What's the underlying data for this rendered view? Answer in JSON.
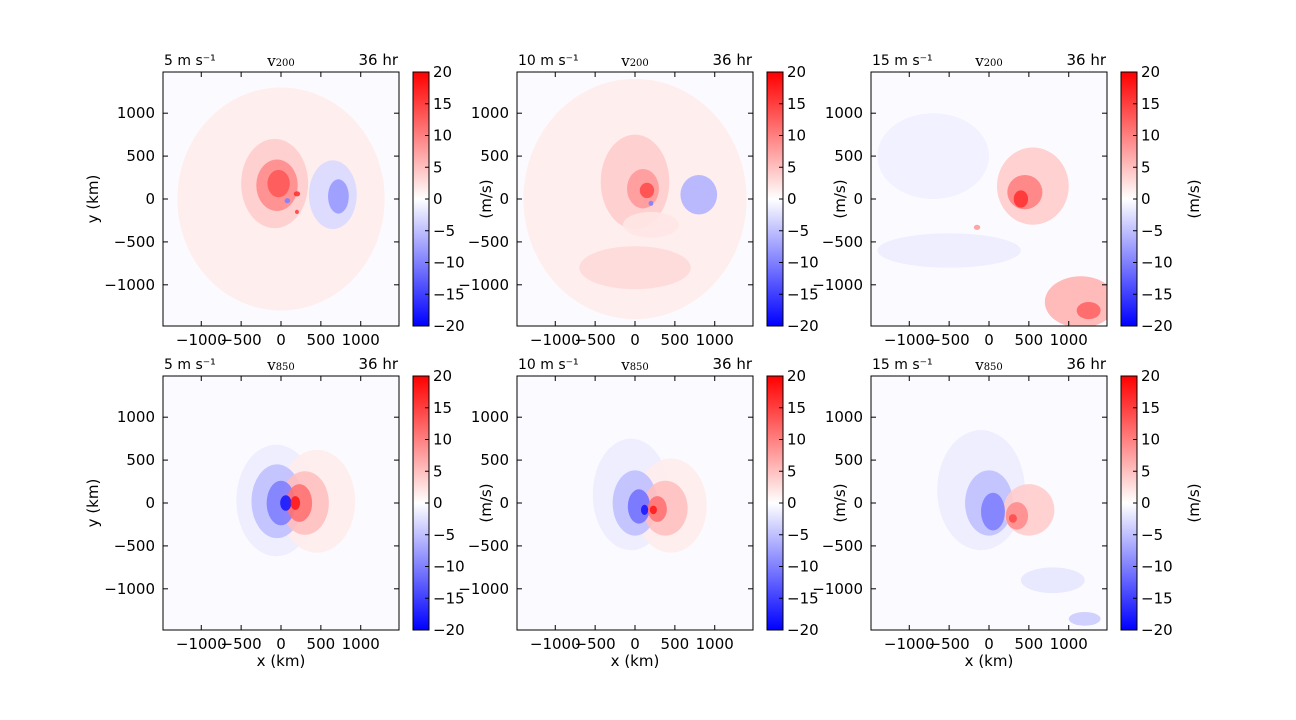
{
  "figure": {
    "xlabel": "x (km)",
    "ylabel": "y (km)",
    "colorbar_label": "(m/s)",
    "time_label": "36 hr"
  },
  "colorscale": {
    "min": -20,
    "max": 20,
    "negative": "#0000ff",
    "zero": "#ffffff",
    "positive": "#ff0000"
  },
  "chart_data": [
    {
      "type": "heatmap",
      "shear_label": "5 m s⁻¹",
      "level_var": "v",
      "level_sub": "200",
      "time": "36 hr",
      "xticks": [
        "−1000",
        "−500",
        "0",
        "500",
        "1000"
      ],
      "yticks": [
        "1000",
        "500",
        "0",
        "−500",
        "−1000"
      ],
      "cbar_ticks": [
        "20",
        "15",
        "10",
        "5",
        "0",
        "−5",
        "−10",
        "−15",
        "−20"
      ],
      "xlim": [
        -1480,
        1480
      ],
      "ylim": [
        -1480,
        1480
      ],
      "blobs": [
        {
          "x": -80,
          "y": 180,
          "rx": 420,
          "ry": 520,
          "v": 4
        },
        {
          "x": -50,
          "y": 160,
          "rx": 260,
          "ry": 300,
          "v": 9
        },
        {
          "x": -30,
          "y": 180,
          "rx": 140,
          "ry": 160,
          "v": 13
        },
        {
          "x": 650,
          "y": 50,
          "rx": 300,
          "ry": 400,
          "v": -3
        },
        {
          "x": 720,
          "y": 30,
          "rx": 130,
          "ry": 200,
          "v": -8
        },
        {
          "x": 200,
          "y": 60,
          "rx": 40,
          "ry": 30,
          "v": 16
        },
        {
          "x": 80,
          "y": -20,
          "rx": 35,
          "ry": 30,
          "v": -10
        },
        {
          "x": 200,
          "y": -150,
          "rx": 25,
          "ry": 25,
          "v": 15
        },
        {
          "x": 0,
          "y": 0,
          "rx": 1300,
          "ry": 1300,
          "v": 1.5
        }
      ]
    },
    {
      "type": "heatmap",
      "shear_label": "10 m s⁻¹",
      "level_var": "v",
      "level_sub": "200",
      "time": "36 hr",
      "xticks": [
        "−1000",
        "−500",
        "0",
        "500",
        "1000"
      ],
      "yticks": [
        "1000",
        "500",
        "0",
        "−500",
        "−1000"
      ],
      "cbar_ticks": [
        "20",
        "15",
        "10",
        "5",
        "0",
        "−5",
        "−10",
        "−15",
        "−20"
      ],
      "xlim": [
        -1480,
        1480
      ],
      "ylim": [
        -1480,
        1480
      ],
      "blobs": [
        {
          "x": 0,
          "y": 200,
          "rx": 430,
          "ry": 550,
          "v": 4
        },
        {
          "x": 100,
          "y": 120,
          "rx": 200,
          "ry": 230,
          "v": 8
        },
        {
          "x": 150,
          "y": 100,
          "rx": 90,
          "ry": 90,
          "v": 14
        },
        {
          "x": 200,
          "y": -50,
          "rx": 30,
          "ry": 30,
          "v": -10
        },
        {
          "x": 800,
          "y": 50,
          "rx": 230,
          "ry": 230,
          "v": -6
        },
        {
          "x": 200,
          "y": -300,
          "rx": 350,
          "ry": 150,
          "v": 2
        },
        {
          "x": 0,
          "y": -800,
          "rx": 700,
          "ry": 250,
          "v": 3
        },
        {
          "x": 0,
          "y": 0,
          "rx": 1400,
          "ry": 1400,
          "v": 1.5
        }
      ]
    },
    {
      "type": "heatmap",
      "shear_label": "15 m s⁻¹",
      "level_var": "v",
      "level_sub": "200",
      "time": "36 hr",
      "xticks": [
        "−1000",
        "−500",
        "0",
        "500",
        "1000"
      ],
      "yticks": [
        "1000",
        "500",
        "0",
        "−500",
        "−1000"
      ],
      "cbar_ticks": [
        "20",
        "15",
        "10",
        "5",
        "0",
        "−5",
        "−10",
        "−15",
        "−20"
      ],
      "xlim": [
        -1480,
        1480
      ],
      "ylim": [
        -1480,
        1480
      ],
      "blobs": [
        {
          "x": 550,
          "y": 150,
          "rx": 450,
          "ry": 450,
          "v": 4
        },
        {
          "x": 450,
          "y": 80,
          "rx": 220,
          "ry": 200,
          "v": 10
        },
        {
          "x": 400,
          "y": 0,
          "rx": 90,
          "ry": 100,
          "v": 16
        },
        {
          "x": 1150,
          "y": -1200,
          "rx": 450,
          "ry": 300,
          "v": 6
        },
        {
          "x": 1250,
          "y": -1300,
          "rx": 150,
          "ry": 100,
          "v": 12
        },
        {
          "x": -500,
          "y": -600,
          "rx": 900,
          "ry": 200,
          "v": -1.5
        },
        {
          "x": -700,
          "y": 500,
          "rx": 700,
          "ry": 500,
          "v": -1.2
        },
        {
          "x": -150,
          "y": -330,
          "rx": 40,
          "ry": 30,
          "v": 8
        }
      ]
    },
    {
      "type": "heatmap",
      "shear_label": "5 m s⁻¹",
      "level_var": "v",
      "level_sub": "850",
      "time": "36 hr",
      "xticks": [
        "−1000",
        "−500",
        "0",
        "500",
        "1000"
      ],
      "yticks": [
        "1000",
        "500",
        "0",
        "−500",
        "−1000"
      ],
      "cbar_ticks": [
        "20",
        "15",
        "10",
        "5",
        "0",
        "−5",
        "−10",
        "−15",
        "−20"
      ],
      "xlim": [
        -1480,
        1480
      ],
      "ylim": [
        -1480,
        1480
      ],
      "blobs": [
        {
          "x": -60,
          "y": 30,
          "rx": 500,
          "ry": 650,
          "v": -1.5
        },
        {
          "x": 450,
          "y": 20,
          "rx": 480,
          "ry": 600,
          "v": 1.5
        },
        {
          "x": -50,
          "y": 20,
          "rx": 320,
          "ry": 430,
          "v": -5
        },
        {
          "x": 0,
          "y": 0,
          "rx": 180,
          "ry": 260,
          "v": -10
        },
        {
          "x": 60,
          "y": 0,
          "rx": 70,
          "ry": 90,
          "v": -18
        },
        {
          "x": 300,
          "y": 0,
          "rx": 300,
          "ry": 370,
          "v": 5
        },
        {
          "x": 230,
          "y": 0,
          "rx": 160,
          "ry": 220,
          "v": 11
        },
        {
          "x": 180,
          "y": 0,
          "rx": 60,
          "ry": 80,
          "v": 18
        }
      ]
    },
    {
      "type": "heatmap",
      "shear_label": "10 m s⁻¹",
      "level_var": "v",
      "level_sub": "850",
      "time": "36 hr",
      "xticks": [
        "−1000",
        "−500",
        "0",
        "500",
        "1000"
      ],
      "yticks": [
        "1000",
        "500",
        "0",
        "−500",
        "−1000"
      ],
      "cbar_ticks": [
        "20",
        "15",
        "10",
        "5",
        "0",
        "−5",
        "−10",
        "−15",
        "−20"
      ],
      "xlim": [
        -1480,
        1480
      ],
      "ylim": [
        -1480,
        1480
      ],
      "blobs": [
        {
          "x": -50,
          "y": 100,
          "rx": 480,
          "ry": 650,
          "v": -1.5
        },
        {
          "x": 450,
          "y": -30,
          "rx": 450,
          "ry": 550,
          "v": 1.5
        },
        {
          "x": 0,
          "y": 0,
          "rx": 280,
          "ry": 380,
          "v": -5
        },
        {
          "x": 50,
          "y": -40,
          "rx": 140,
          "ry": 200,
          "v": -11
        },
        {
          "x": 120,
          "y": -80,
          "rx": 45,
          "ry": 60,
          "v": -18
        },
        {
          "x": 380,
          "y": -60,
          "rx": 280,
          "ry": 320,
          "v": 5
        },
        {
          "x": 280,
          "y": -70,
          "rx": 120,
          "ry": 150,
          "v": 11
        },
        {
          "x": 230,
          "y": -80,
          "rx": 45,
          "ry": 50,
          "v": 18
        }
      ]
    },
    {
      "type": "heatmap",
      "shear_label": "15 m s⁻¹",
      "level_var": "v",
      "level_sub": "850",
      "time": "36 hr",
      "xticks": [
        "−1000",
        "−500",
        "0",
        "500",
        "1000"
      ],
      "yticks": [
        "1000",
        "500",
        "0",
        "−500",
        "−1000"
      ],
      "cbar_ticks": [
        "20",
        "15",
        "10",
        "5",
        "0",
        "−5",
        "−10",
        "−15",
        "−20"
      ],
      "xlim": [
        -1480,
        1480
      ],
      "ylim": [
        -1480,
        1480
      ],
      "blobs": [
        {
          "x": -100,
          "y": 150,
          "rx": 550,
          "ry": 700,
          "v": -1.5
        },
        {
          "x": 0,
          "y": 0,
          "rx": 300,
          "ry": 380,
          "v": -5
        },
        {
          "x": 50,
          "y": -100,
          "rx": 150,
          "ry": 220,
          "v": -10
        },
        {
          "x": 500,
          "y": -80,
          "rx": 320,
          "ry": 300,
          "v": 4
        },
        {
          "x": 350,
          "y": -150,
          "rx": 140,
          "ry": 160,
          "v": 9
        },
        {
          "x": 300,
          "y": -180,
          "rx": 50,
          "ry": 50,
          "v": 14
        },
        {
          "x": 800,
          "y": -900,
          "rx": 400,
          "ry": 150,
          "v": -2
        },
        {
          "x": 1200,
          "y": -1350,
          "rx": 200,
          "ry": 80,
          "v": -4
        }
      ]
    }
  ]
}
